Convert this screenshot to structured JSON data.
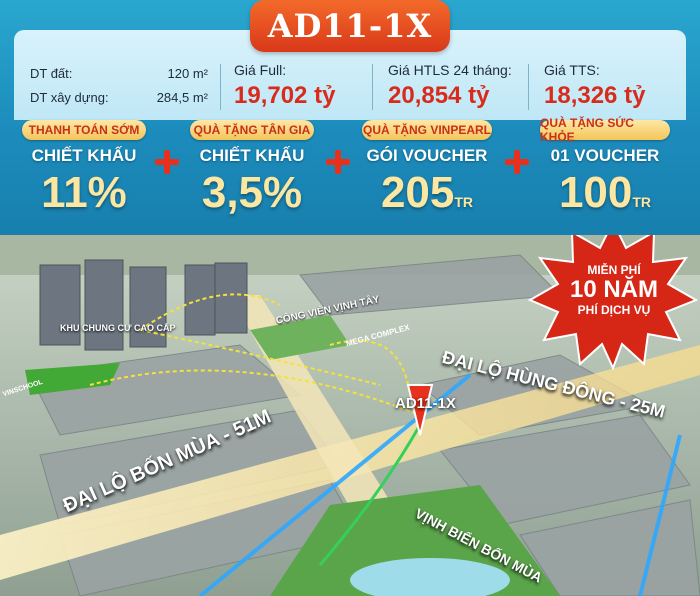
{
  "title": "AD11-1X",
  "land": {
    "label": "DT đất:",
    "value": "120 m²"
  },
  "build": {
    "label": "DT xây dựng:",
    "value": "284,5 m²"
  },
  "prices": [
    {
      "label": "Giá Full:",
      "value": "19,702 tỷ"
    },
    {
      "label": "Giá HTLS 24 tháng:",
      "value": "20,854 tỷ"
    },
    {
      "label": "Giá TTS:",
      "value": "18,326 tỷ"
    }
  ],
  "offers": [
    {
      "badge": "THANH TOÁN SỚM",
      "title": "CHIẾT KHẤU",
      "value": "11%",
      "unit": ""
    },
    {
      "badge": "QUÀ TẶNG TÂN GIA",
      "title": "CHIẾT KHẤU",
      "value": "3,5%",
      "unit": ""
    },
    {
      "badge": "QUÀ TẶNG VINPEARL",
      "title": "GÓI VOUCHER",
      "value": "205",
      "unit": "TR"
    },
    {
      "badge": "QUÀ TẶNG SỨC KHỎE",
      "title": "01 VOUCHER",
      "value": "100",
      "unit": "TR"
    }
  ],
  "promo": {
    "line1": "MIỄN PHÍ",
    "line2": "10 NĂM",
    "line3": "PHÍ DỊCH VỤ"
  },
  "map_labels": {
    "condo": "KHU CHUNG CƯ CAO CẤP",
    "park": "CÔNG VIÊN VỊNH TÂY",
    "mega": "MEGA COMPLEX",
    "unit": "AD11-1X",
    "hung_dong": "ĐẠI LỘ HÙNG ĐÔNG - 25M",
    "bon_mua": "ĐẠI LỘ BỐN MÙA - 51M",
    "vinh_bien": "VỊNH BIỂN BỐN MÙA",
    "left_tag": "VINSCHOOL"
  },
  "colors": {
    "accent": "#d92b1c",
    "panel": "#1c8cbc",
    "gold": "#fbe6a2"
  }
}
